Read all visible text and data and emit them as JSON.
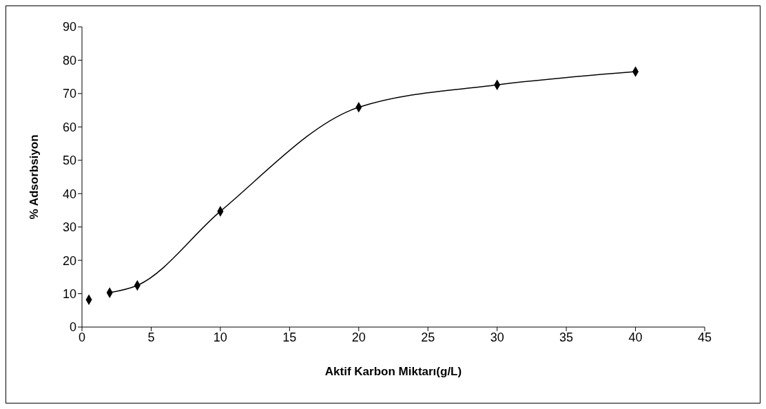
{
  "chart_data": {
    "type": "line",
    "xlabel": "Aktif Karbon Miktarı(g/L)",
    "ylabel": "% Adsorbsiyon",
    "xlim": [
      0,
      45
    ],
    "xticks": [
      0,
      5,
      10,
      15,
      20,
      25,
      30,
      35,
      40,
      45
    ],
    "ylim": [
      0,
      90
    ],
    "yticks": [
      0,
      10,
      20,
      30,
      40,
      50,
      60,
      70,
      80,
      90
    ],
    "grid": false,
    "series": [
      {
        "type": "scatter",
        "color": "#000000",
        "marker": "diamond",
        "x": [
          0.5,
          2,
          4,
          10,
          20,
          30,
          40
        ],
        "values": [
          8.2,
          10.3,
          12.5,
          34.7,
          65.9,
          72.6,
          76.6
        ]
      },
      {
        "type": "line",
        "color": "#000000",
        "marker": "none",
        "line_style": "solid",
        "x": [
          2,
          4,
          10,
          20,
          30,
          40
        ],
        "values": [
          10.3,
          12.5,
          34.7,
          65.9,
          72.6,
          76.6
        ]
      }
    ]
  }
}
